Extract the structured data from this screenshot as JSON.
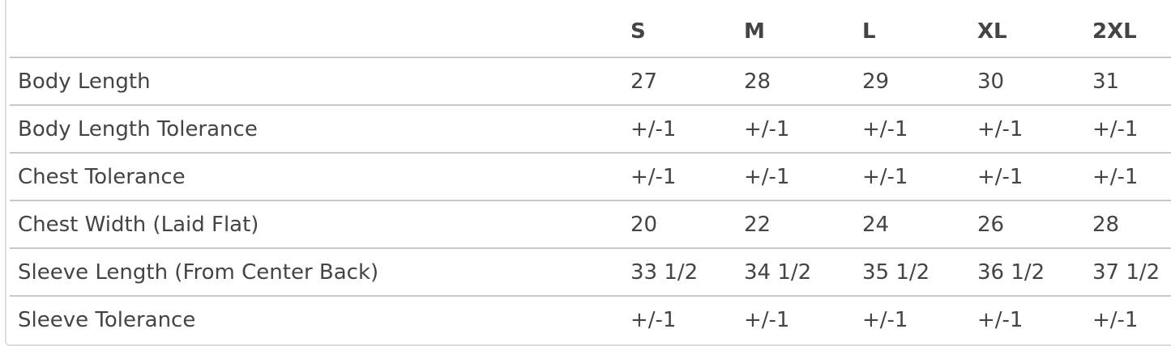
{
  "table": {
    "headers": [
      "",
      "S",
      "M",
      "L",
      "XL",
      "2XL"
    ],
    "rows": [
      {
        "label": "Body Length",
        "values": [
          "27",
          "28",
          "29",
          "30",
          "31"
        ]
      },
      {
        "label": "Body Length Tolerance",
        "values": [
          "+/-1",
          "+/-1",
          "+/-1",
          "+/-1",
          "+/-1"
        ]
      },
      {
        "label": "Chest Tolerance",
        "values": [
          "+/-1",
          "+/-1",
          "+/-1",
          "+/-1",
          "+/-1"
        ]
      },
      {
        "label": "Chest Width (Laid Flat)",
        "values": [
          "20",
          "22",
          "24",
          "26",
          "28"
        ]
      },
      {
        "label": "Sleeve Length (From Center Back)",
        "values": [
          "33 1/2",
          "34 1/2",
          "35 1/2",
          "36 1/2",
          "37 1/2"
        ]
      },
      {
        "label": "Sleeve Tolerance",
        "values": [
          "+/-1",
          "+/-1",
          "+/-1",
          "+/-1",
          "+/-1"
        ]
      }
    ]
  }
}
